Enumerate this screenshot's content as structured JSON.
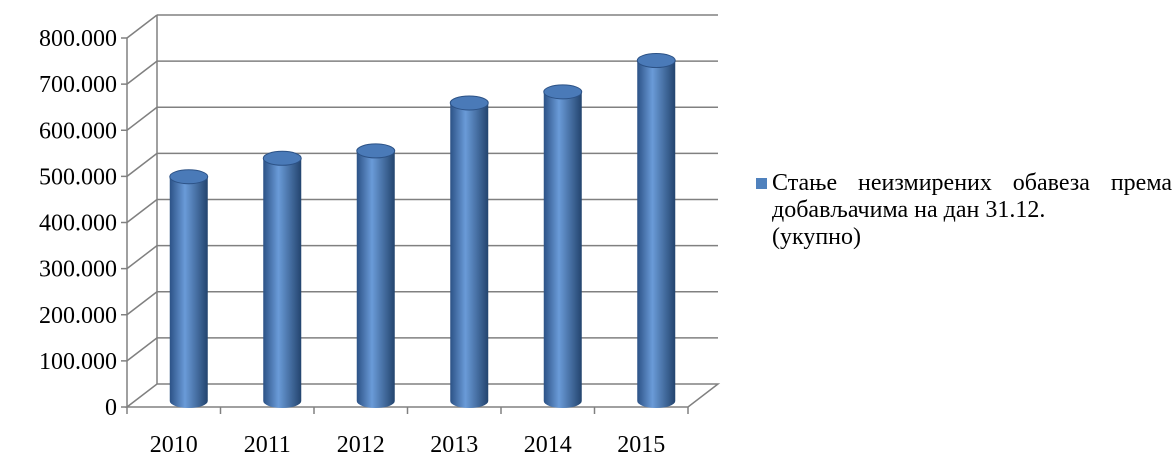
{
  "chart_data": {
    "type": "bar",
    "categories": [
      "2010",
      "2011",
      "2012",
      "2013",
      "2014",
      "2015"
    ],
    "series": [
      {
        "name": "Стање неизмирених обавеза према добављачима на дан 31.12.\n(укупно)",
        "values": [
          497000,
          537000,
          553000,
          657000,
          681000,
          749000
        ],
        "color": "#4f81bd"
      }
    ],
    "y_ticks": [
      "0",
      "100.000",
      "200.000",
      "300.000",
      "400.000",
      "500.000",
      "600.000",
      "700.000",
      "800.000"
    ],
    "ylim": [
      0,
      800000
    ],
    "grid": true,
    "legend_position": "right",
    "style": "3d-cylinder"
  }
}
